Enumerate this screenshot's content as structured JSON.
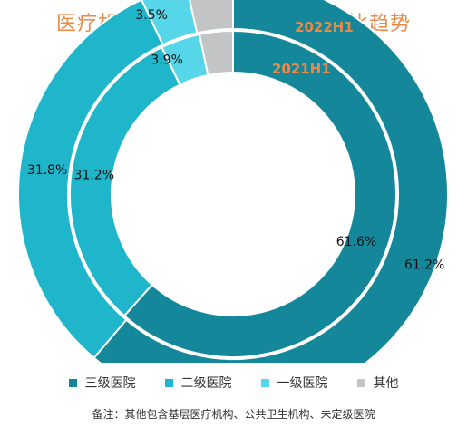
{
  "title": "医疗机构麻醉科耗材交易金额占比趋势",
  "footnote": "备注：其他包含基层医疗机构、公共卫生机构、未定级医院",
  "chart_data": {
    "type": "pie",
    "variant": "nested-donut",
    "categories": [
      "三级医院",
      "二级医院",
      "一级医院",
      "其他"
    ],
    "colors": [
      "#14889a",
      "#1fb6cb",
      "#56d6e8",
      "#c2c4c6"
    ],
    "series": [
      {
        "name": "2022H1",
        "ring": "outer",
        "values": [
          61.2,
          31.8,
          3.5,
          3.5
        ],
        "labels": [
          "61.2%",
          "31.8%",
          "3.5%",
          ""
        ]
      },
      {
        "name": "2021H1",
        "ring": "inner",
        "values": [
          61.6,
          31.2,
          3.9,
          3.3
        ],
        "labels": [
          "61.6%",
          "31.2%",
          "3.9%",
          ""
        ]
      }
    ],
    "legend": {
      "position": "bottom",
      "entries": [
        "三级医院",
        "二级医院",
        "一级医院",
        "其他"
      ]
    }
  }
}
